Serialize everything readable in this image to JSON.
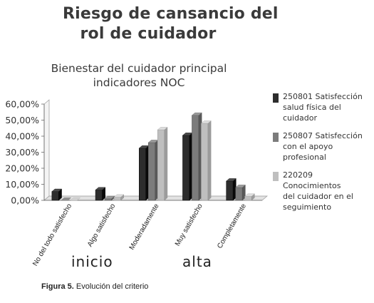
{
  "header": {
    "title_line1": "Riesgo de cansancio del",
    "title_line2": "rol de cuidador"
  },
  "phase_labels": {
    "left": "inicio",
    "right": "alta"
  },
  "caption": {
    "prefix": "Figura 5.",
    "text": " Evolución del criterio"
  },
  "chart_data": {
    "type": "bar",
    "title_line1": "Bienestar del cuidador principal",
    "title_line2": "indicadores NOC",
    "categories": [
      "No del todo satisfecho",
      "Algo satisfecho",
      "Moderadamente",
      "Muy satisfecho",
      "Completamente"
    ],
    "series": [
      {
        "name_line1": "250801 Satisfección",
        "name_line2": "salud física del",
        "name_line3": "cuidador",
        "color": "#2d2d2d",
        "values": [
          5.5,
          6.5,
          32.5,
          40.5,
          12.0
        ]
      },
      {
        "name_line1": "250807 Satisfección",
        "name_line2": "con el apoyo",
        "name_line3": "profesional",
        "color": "#7c7c7c",
        "values": [
          0.0,
          1.0,
          36.0,
          53.0,
          8.0
        ]
      },
      {
        "name_line1": "220209 Conocimientos",
        "name_line2": "del cuidador en el",
        "name_line3": "seguimiento",
        "color": "#bfbfbf",
        "values": [
          0.0,
          2.0,
          44.0,
          48.0,
          2.5
        ]
      }
    ],
    "ylim": [
      0,
      60
    ],
    "yticks": [
      "0,00%",
      "10,00%",
      "20,00%",
      "30,00%",
      "40,00%",
      "50,00%",
      "60,00%"
    ],
    "grid": false,
    "legend": "right"
  }
}
